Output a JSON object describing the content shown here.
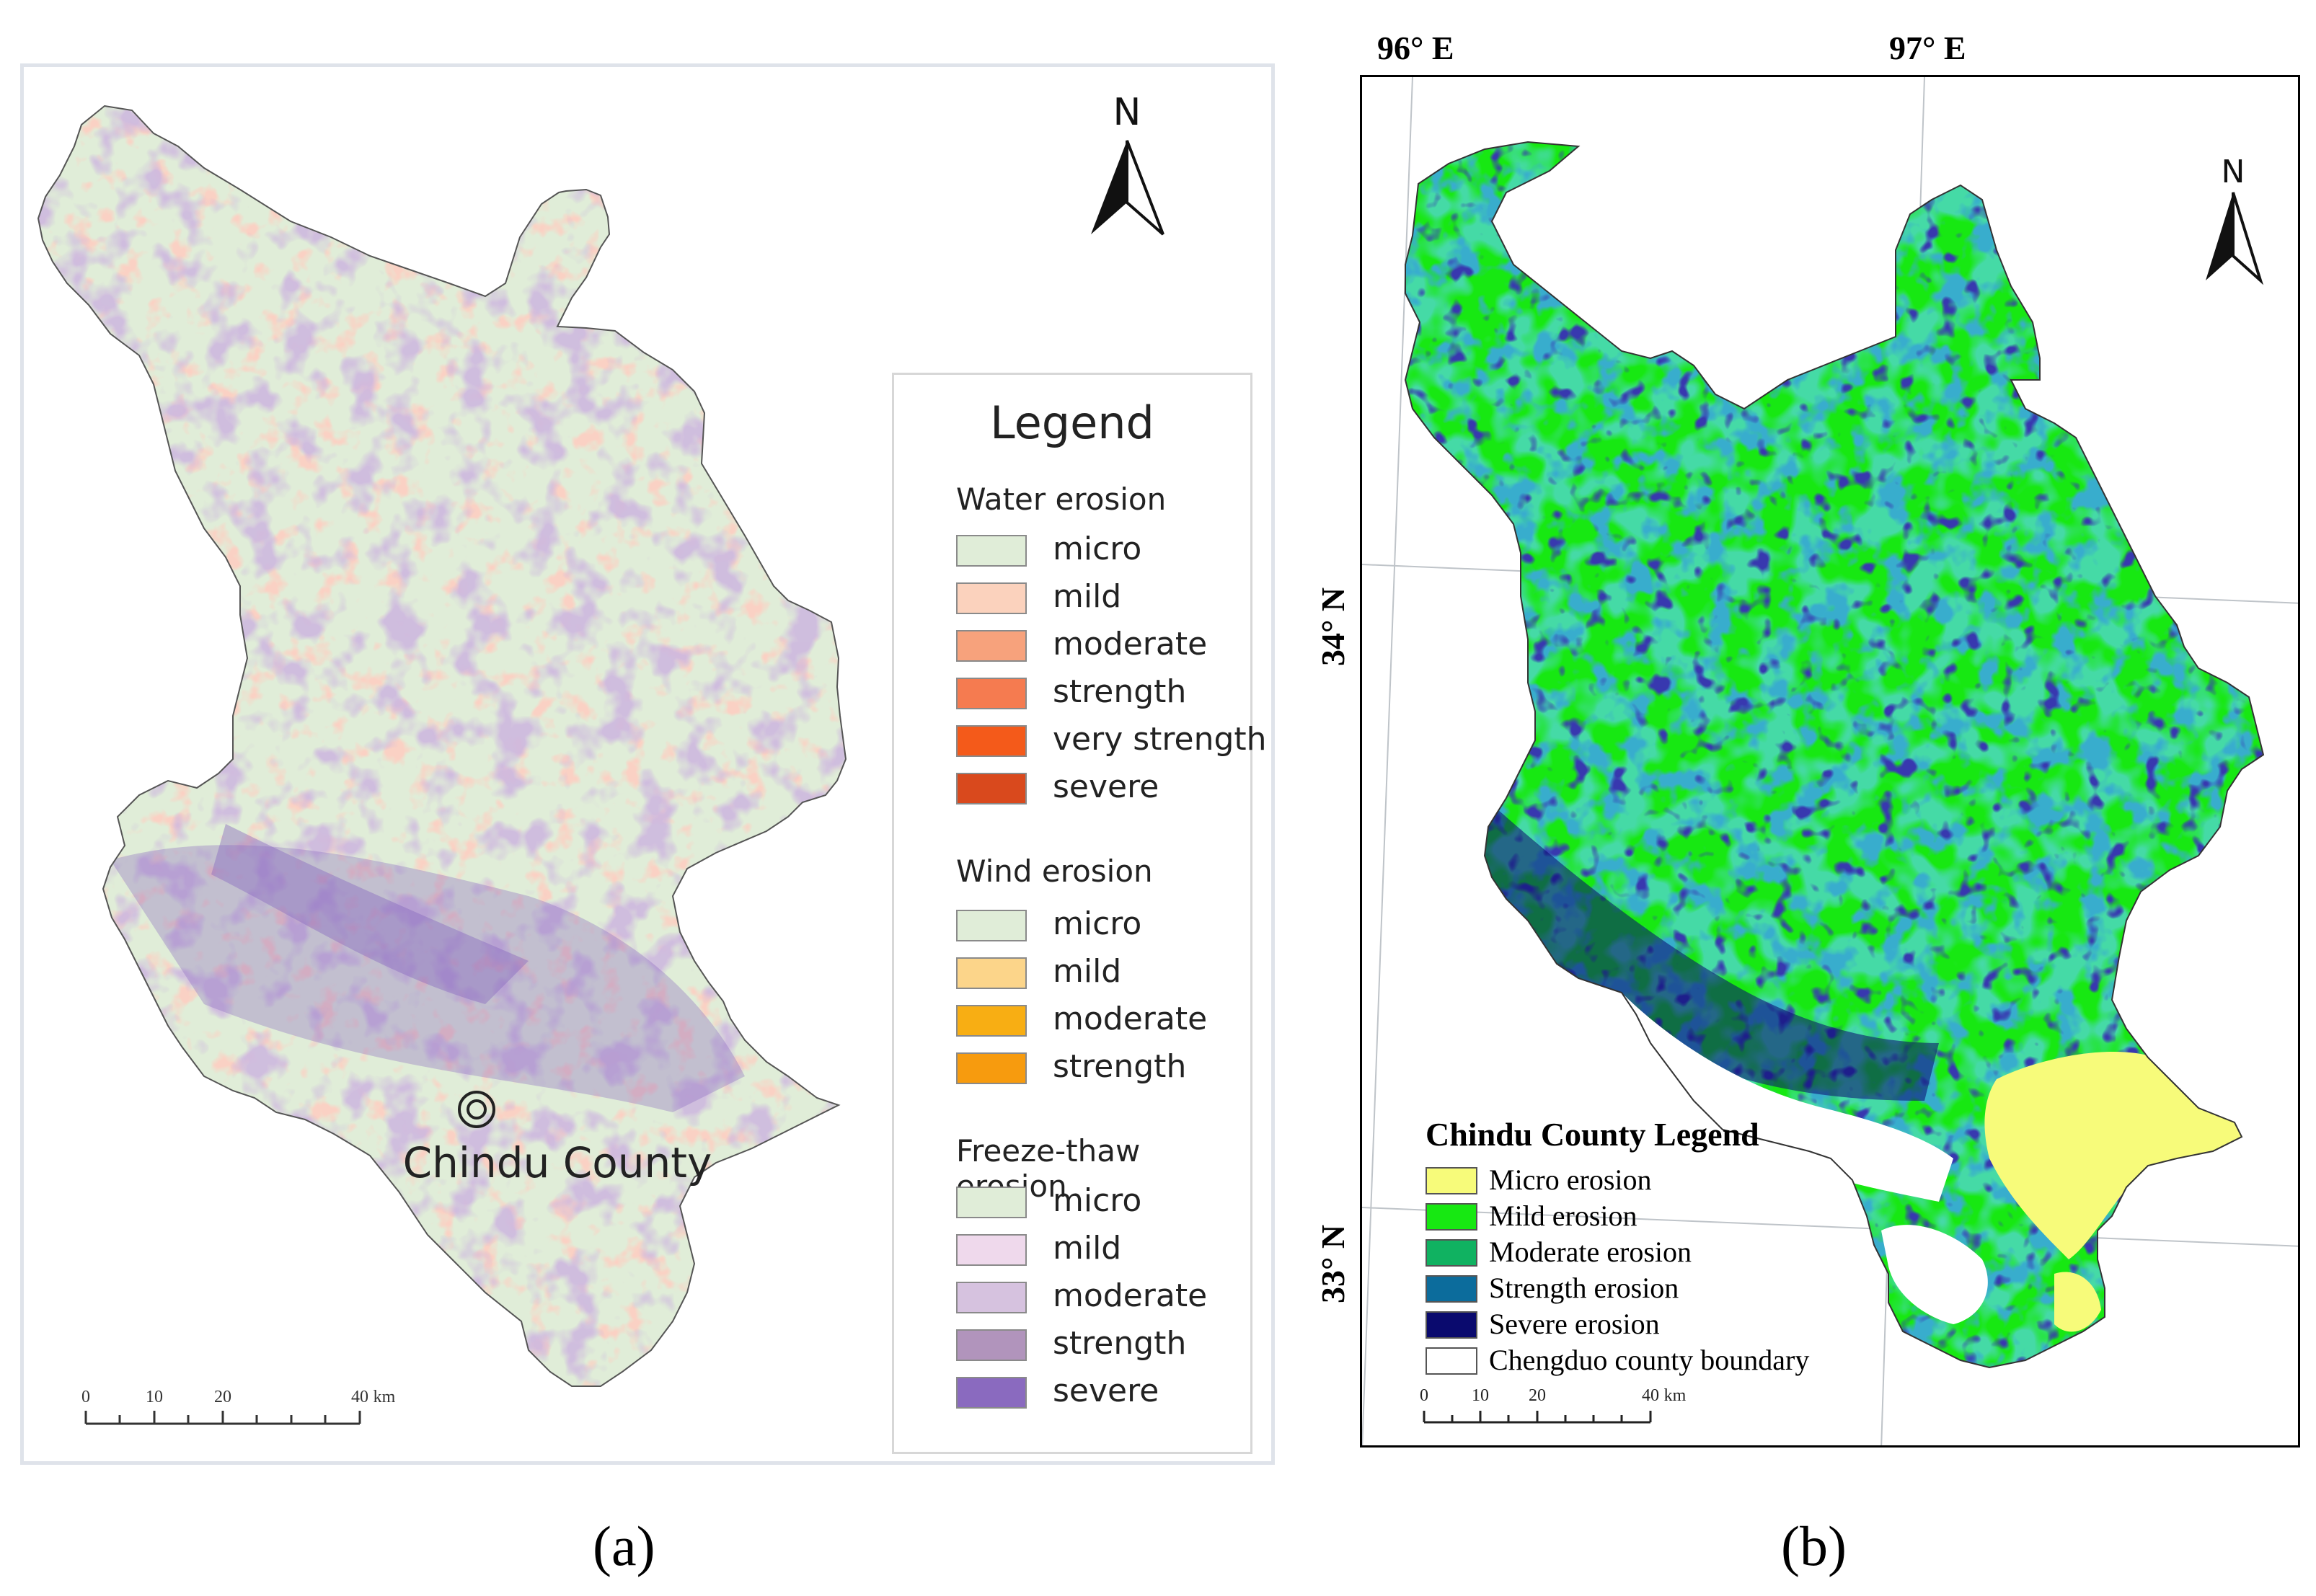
{
  "panel_a": {
    "north_label": "N",
    "place_label": "Chindu County",
    "scale": {
      "ticks": [
        "0",
        "10",
        "20",
        "40"
      ],
      "unit": "km"
    },
    "legend": {
      "title": "Legend",
      "groups": [
        {
          "title": "Water erosion",
          "items": [
            {
              "label": "micro",
              "color": "#e0edd8"
            },
            {
              "label": "mild",
              "color": "#fbd2bd"
            },
            {
              "label": "moderate",
              "color": "#f7a27c"
            },
            {
              "label": "strength",
              "color": "#f57b50"
            },
            {
              "label": "very strength",
              "color": "#f45a1a"
            },
            {
              "label": "severe",
              "color": "#d9491d"
            }
          ]
        },
        {
          "title": "Wind erosion",
          "items": [
            {
              "label": "micro",
              "color": "#e0edd8"
            },
            {
              "label": "mild",
              "color": "#fcd58a"
            },
            {
              "label": "moderate",
              "color": "#f8ae13"
            },
            {
              "label": "strength",
              "color": "#f79b0e"
            }
          ]
        },
        {
          "title": "Freeze-thaw erosion",
          "items": [
            {
              "label": "micro",
              "color": "#e0edd8"
            },
            {
              "label": "mild",
              "color": "#efd9ec"
            },
            {
              "label": "moderate",
              "color": "#d6c2df"
            },
            {
              "label": "strength",
              "color": "#b194bc"
            },
            {
              "label": "severe",
              "color": "#8a6abf"
            }
          ]
        }
      ]
    },
    "caption": "(a)"
  },
  "panel_b": {
    "lon_labels": [
      "96° E",
      "97° E"
    ],
    "lat_labels": [
      "34° N",
      "33° N"
    ],
    "north_label": "N",
    "legend": {
      "title": "Chindu County Legend",
      "items": [
        {
          "label": "Micro erosion",
          "color": "#f7fb7a"
        },
        {
          "label": "Mild erosion",
          "color": "#17e812"
        },
        {
          "label": "Moderate erosion",
          "color": "#10b261"
        },
        {
          "label": "Strength erosion",
          "color": "#0c6c9c"
        },
        {
          "label": "Severe erosion",
          "color": "#0a0a6e"
        },
        {
          "label": "Chengduo county boundary",
          "color": "#ffffff"
        }
      ]
    },
    "scale": {
      "ticks": [
        "0",
        "10",
        "20",
        "40"
      ],
      "unit": "km"
    },
    "caption": "(b)"
  }
}
